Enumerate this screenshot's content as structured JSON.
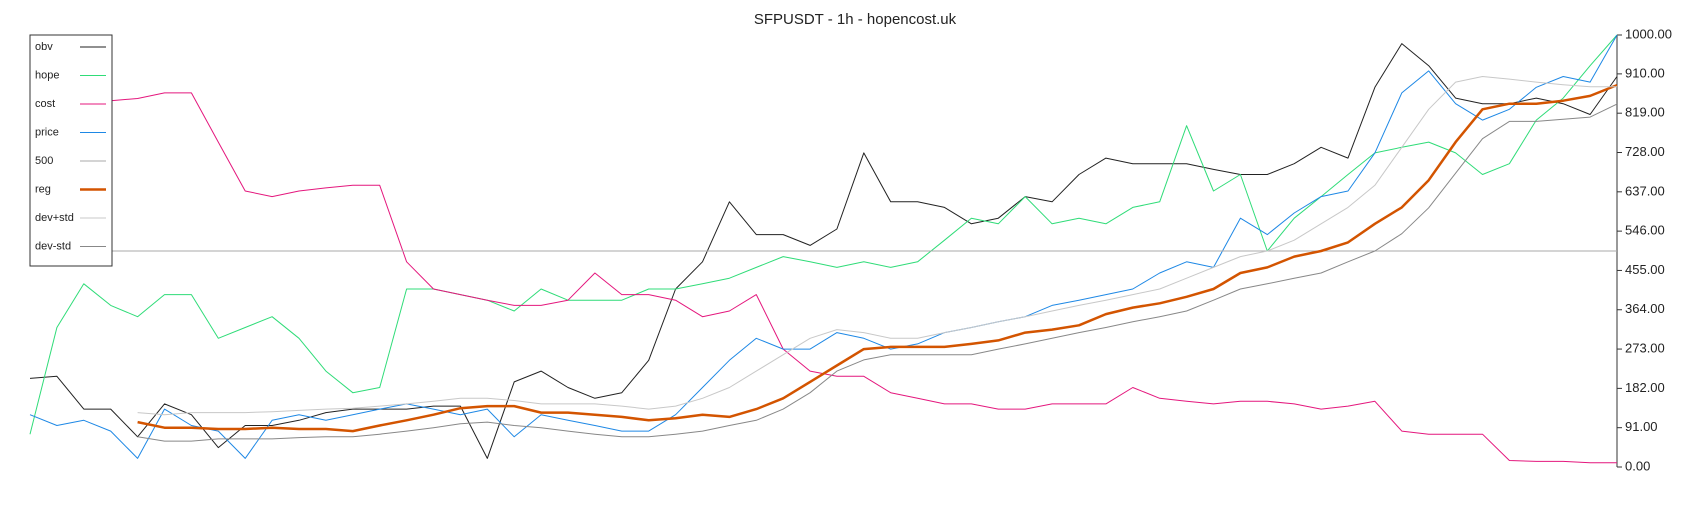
{
  "chart_data": {
    "type": "line",
    "title": "SFPUSDT - 1h - hopencost.uk",
    "ylim": [
      0,
      1000
    ],
    "yticks": [
      {
        "value": 0,
        "label": "0.00"
      },
      {
        "value": 91,
        "label": "91.00"
      },
      {
        "value": 182,
        "label": "182.00"
      },
      {
        "value": 273,
        "label": "273.00"
      },
      {
        "value": 364,
        "label": "364.00"
      },
      {
        "value": 455,
        "label": "455.00"
      },
      {
        "value": 546,
        "label": "546.00"
      },
      {
        "value": 637,
        "label": "637.00"
      },
      {
        "value": 728,
        "label": "728.00"
      },
      {
        "value": 819,
        "label": "819.00"
      },
      {
        "value": 910,
        "label": "910.00"
      },
      {
        "value": 1000,
        "label": "1000.00"
      }
    ],
    "legend": "upper left",
    "series": [
      {
        "name": "obv",
        "color": "#222222",
        "width": 1,
        "values": [
          205,
          210,
          134,
          134,
          70,
          146,
          121,
          45,
          96,
          96,
          108,
          126,
          134,
          134,
          134,
          141,
          141,
          20,
          197,
          222,
          184,
          159,
          172,
          247,
          412,
          475,
          614,
          538,
          538,
          513,
          551,
          727,
          614,
          614,
          601,
          563,
          576,
          626,
          614,
          677,
          715,
          702,
          702,
          702,
          689,
          677,
          677,
          702,
          740,
          715,
          879,
          980,
          929,
          854,
          841,
          841,
          854,
          841,
          816,
          904
        ]
      },
      {
        "name": "hope",
        "color": "#2fdc78",
        "width": 1,
        "values": [
          76,
          323,
          424,
          374,
          348,
          399,
          399,
          298,
          323,
          348,
          298,
          222,
          172,
          184,
          412,
          412,
          399,
          386,
          361,
          412,
          386,
          386,
          386,
          412,
          412,
          424,
          437,
          462,
          487,
          475,
          462,
          475,
          462,
          475,
          525,
          576,
          563,
          626,
          563,
          576,
          563,
          601,
          614,
          790,
          639,
          677,
          500,
          576,
          626,
          677,
          727,
          740,
          752,
          727,
          677,
          702,
          803,
          854,
          929,
          1000
        ]
      },
      {
        "name": "cost",
        "color": "#e4177d",
        "width": 1,
        "values": [
          null,
          null,
          null,
          848,
          853,
          866,
          866,
          752,
          639,
          626,
          639,
          646,
          652,
          652,
          475,
          412,
          399,
          386,
          374,
          374,
          386,
          449,
          399,
          399,
          386,
          348,
          361,
          399,
          273,
          222,
          210,
          210,
          172,
          159,
          146,
          146,
          134,
          134,
          146,
          146,
          146,
          184,
          159,
          152,
          146,
          152,
          152,
          146,
          134,
          141,
          152,
          83,
          76,
          76,
          76,
          15,
          13,
          13,
          10,
          10
        ]
      },
      {
        "name": "price",
        "color": "#1e88e5",
        "width": 1,
        "values": [
          121,
          96,
          108,
          83,
          20,
          134,
          96,
          83,
          20,
          108,
          121,
          108,
          121,
          134,
          146,
          134,
          121,
          134,
          70,
          121,
          108,
          96,
          83,
          83,
          121,
          184,
          247,
          298,
          273,
          273,
          311,
          298,
          273,
          285,
          311,
          323,
          336,
          348,
          374,
          386,
          399,
          412,
          449,
          475,
          462,
          576,
          538,
          588,
          626,
          639,
          727,
          866,
          917,
          841,
          803,
          828,
          879,
          904,
          891,
          1000
        ]
      },
      {
        "name": "500",
        "color": "#aaaaaa",
        "width": 1,
        "values": [
          500,
          500,
          500,
          500,
          500,
          500,
          500,
          500,
          500,
          500,
          500,
          500,
          500,
          500,
          500,
          500,
          500,
          500,
          500,
          500,
          500,
          500,
          500,
          500,
          500,
          500,
          500,
          500,
          500,
          500,
          500,
          500,
          500,
          500,
          500,
          500,
          500,
          500,
          500,
          500,
          500,
          500,
          500,
          500,
          500,
          500,
          500,
          500,
          500,
          500,
          500,
          500,
          500,
          500,
          500,
          500,
          500,
          500,
          500,
          500
        ]
      },
      {
        "name": "reg",
        "color": "#d35400",
        "width": 2.5,
        "values": [
          null,
          null,
          null,
          null,
          104,
          91,
          91,
          88,
          88,
          91,
          88,
          88,
          83,
          96,
          108,
          121,
          136,
          141,
          141,
          126,
          126,
          121,
          116,
          108,
          113,
          121,
          116,
          134,
          159,
          197,
          235,
          273,
          278,
          278,
          278,
          285,
          293,
          311,
          318,
          328,
          354,
          369,
          379,
          394,
          412,
          449,
          462,
          487,
          500,
          520,
          563,
          601,
          664,
          752,
          828,
          841,
          841,
          848,
          859,
          884
        ]
      },
      {
        "name": "dev+std",
        "color": "#c8c8c8",
        "width": 1,
        "values": [
          null,
          null,
          null,
          null,
          126,
          121,
          126,
          126,
          126,
          128,
          131,
          134,
          136,
          141,
          146,
          152,
          159,
          159,
          154,
          146,
          146,
          146,
          141,
          134,
          141,
          159,
          184,
          222,
          260,
          298,
          318,
          311,
          298,
          298,
          311,
          323,
          336,
          348,
          361,
          374,
          386,
          399,
          412,
          437,
          462,
          487,
          500,
          525,
          563,
          601,
          652,
          740,
          828,
          891,
          904,
          898,
          891,
          885,
          880,
          880
        ]
      },
      {
        "name": "dev-std",
        "color": "#888888",
        "width": 1,
        "values": [
          null,
          null,
          null,
          null,
          70,
          60,
          60,
          65,
          65,
          65,
          68,
          70,
          70,
          76,
          83,
          91,
          100,
          104,
          96,
          91,
          83,
          76,
          70,
          70,
          76,
          83,
          96,
          108,
          134,
          172,
          222,
          248,
          260,
          260,
          260,
          260,
          273,
          285,
          298,
          311,
          323,
          336,
          348,
          361,
          386,
          412,
          424,
          437,
          449,
          475,
          500,
          540,
          600,
          680,
          760,
          800,
          800,
          805,
          810,
          840
        ]
      }
    ]
  }
}
